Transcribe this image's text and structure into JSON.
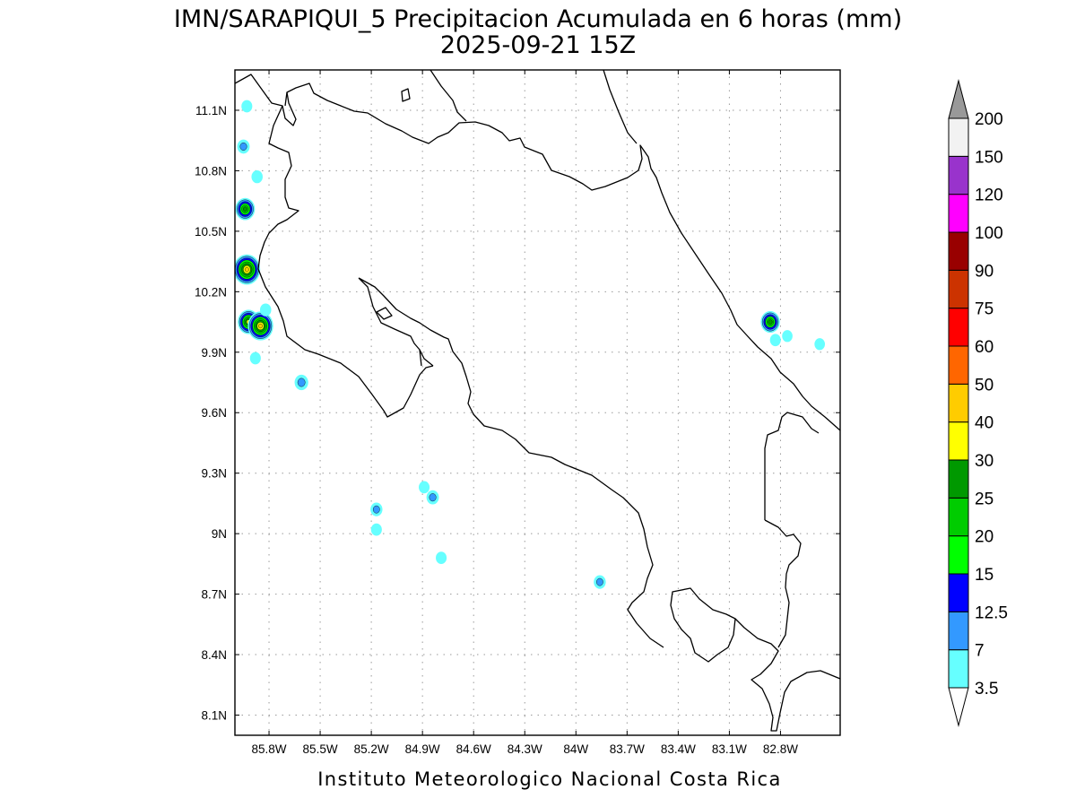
{
  "title": {
    "line1": "IMN/SARAPIQUI_5 Precipitacion Acumulada en 6 horas (mm)",
    "line2": "2025-09-21 15Z"
  },
  "footer": "Instituto Meteorologico Nacional Costa Rica",
  "map": {
    "lon_range": [
      -86.0,
      -82.45
    ],
    "lat_range": [
      8.0,
      11.3
    ],
    "lon_ticks": [
      {
        "value": -85.8,
        "label": "85.8W"
      },
      {
        "value": -85.5,
        "label": "85.5W"
      },
      {
        "value": -85.2,
        "label": "85.2W"
      },
      {
        "value": -84.9,
        "label": "84.9W"
      },
      {
        "value": -84.6,
        "label": "84.6W"
      },
      {
        "value": -84.3,
        "label": "84.3W"
      },
      {
        "value": -84.0,
        "label": "84W"
      },
      {
        "value": -83.7,
        "label": "83.7W"
      },
      {
        "value": -83.4,
        "label": "83.4W"
      },
      {
        "value": -83.1,
        "label": "83.1W"
      },
      {
        "value": -82.8,
        "label": "82.8W"
      }
    ],
    "lat_ticks": [
      {
        "value": 11.1,
        "label": "11.1N"
      },
      {
        "value": 10.8,
        "label": "10.8N"
      },
      {
        "value": 10.5,
        "label": "10.5N"
      },
      {
        "value": 10.2,
        "label": "10.2N"
      },
      {
        "value": 9.9,
        "label": "9.9N"
      },
      {
        "value": 9.6,
        "label": "9.6N"
      },
      {
        "value": 9.3,
        "label": "9.3N"
      },
      {
        "value": 9.0,
        "label": "9N"
      },
      {
        "value": 8.7,
        "label": "8.7N"
      },
      {
        "value": 8.4,
        "label": "8.4N"
      },
      {
        "value": 8.1,
        "label": "8.1N"
      }
    ],
    "grid": true,
    "precip_cells": [
      {
        "lon": -85.93,
        "lat": 11.12,
        "value": 5
      },
      {
        "lon": -85.95,
        "lat": 10.92,
        "value": 9
      },
      {
        "lon": -85.87,
        "lat": 10.77,
        "value": 6
      },
      {
        "lon": -85.94,
        "lat": 10.61,
        "value": 27
      },
      {
        "lon": -85.93,
        "lat": 10.31,
        "value": 45
      },
      {
        "lon": -85.92,
        "lat": 10.05,
        "value": 32
      },
      {
        "lon": -85.85,
        "lat": 10.03,
        "value": 42
      },
      {
        "lon": -85.82,
        "lat": 10.11,
        "value": 6
      },
      {
        "lon": -85.88,
        "lat": 9.87,
        "value": 5
      },
      {
        "lon": -85.61,
        "lat": 9.75,
        "value": 12
      },
      {
        "lon": -85.17,
        "lat": 9.12,
        "value": 8
      },
      {
        "lon": -85.17,
        "lat": 9.02,
        "value": 5
      },
      {
        "lon": -84.89,
        "lat": 9.23,
        "value": 5
      },
      {
        "lon": -84.84,
        "lat": 9.18,
        "value": 9
      },
      {
        "lon": -84.79,
        "lat": 8.88,
        "value": 5
      },
      {
        "lon": -83.86,
        "lat": 8.76,
        "value": 8
      },
      {
        "lon": -82.86,
        "lat": 10.05,
        "value": 26
      },
      {
        "lon": -82.83,
        "lat": 9.96,
        "value": 5
      },
      {
        "lon": -82.76,
        "lat": 9.98,
        "value": 4
      },
      {
        "lon": -82.57,
        "lat": 9.94,
        "value": 4
      }
    ]
  },
  "colorbar": {
    "levels": [
      "3.5",
      "7",
      "12.5",
      "15",
      "20",
      "25",
      "30",
      "40",
      "50",
      "60",
      "75",
      "90",
      "100",
      "120",
      "150",
      "200"
    ],
    "colors": [
      "#66ffff",
      "#3399ff",
      "#0000ff",
      "#00ff00",
      "#00cc00",
      "#009900",
      "#ffff00",
      "#ffcc00",
      "#ff6600",
      "#ff0000",
      "#cc3300",
      "#990000",
      "#ff00ff",
      "#9933cc",
      "#f2f2f2"
    ],
    "over_color": "#999999",
    "under_color": "#ffffff"
  }
}
